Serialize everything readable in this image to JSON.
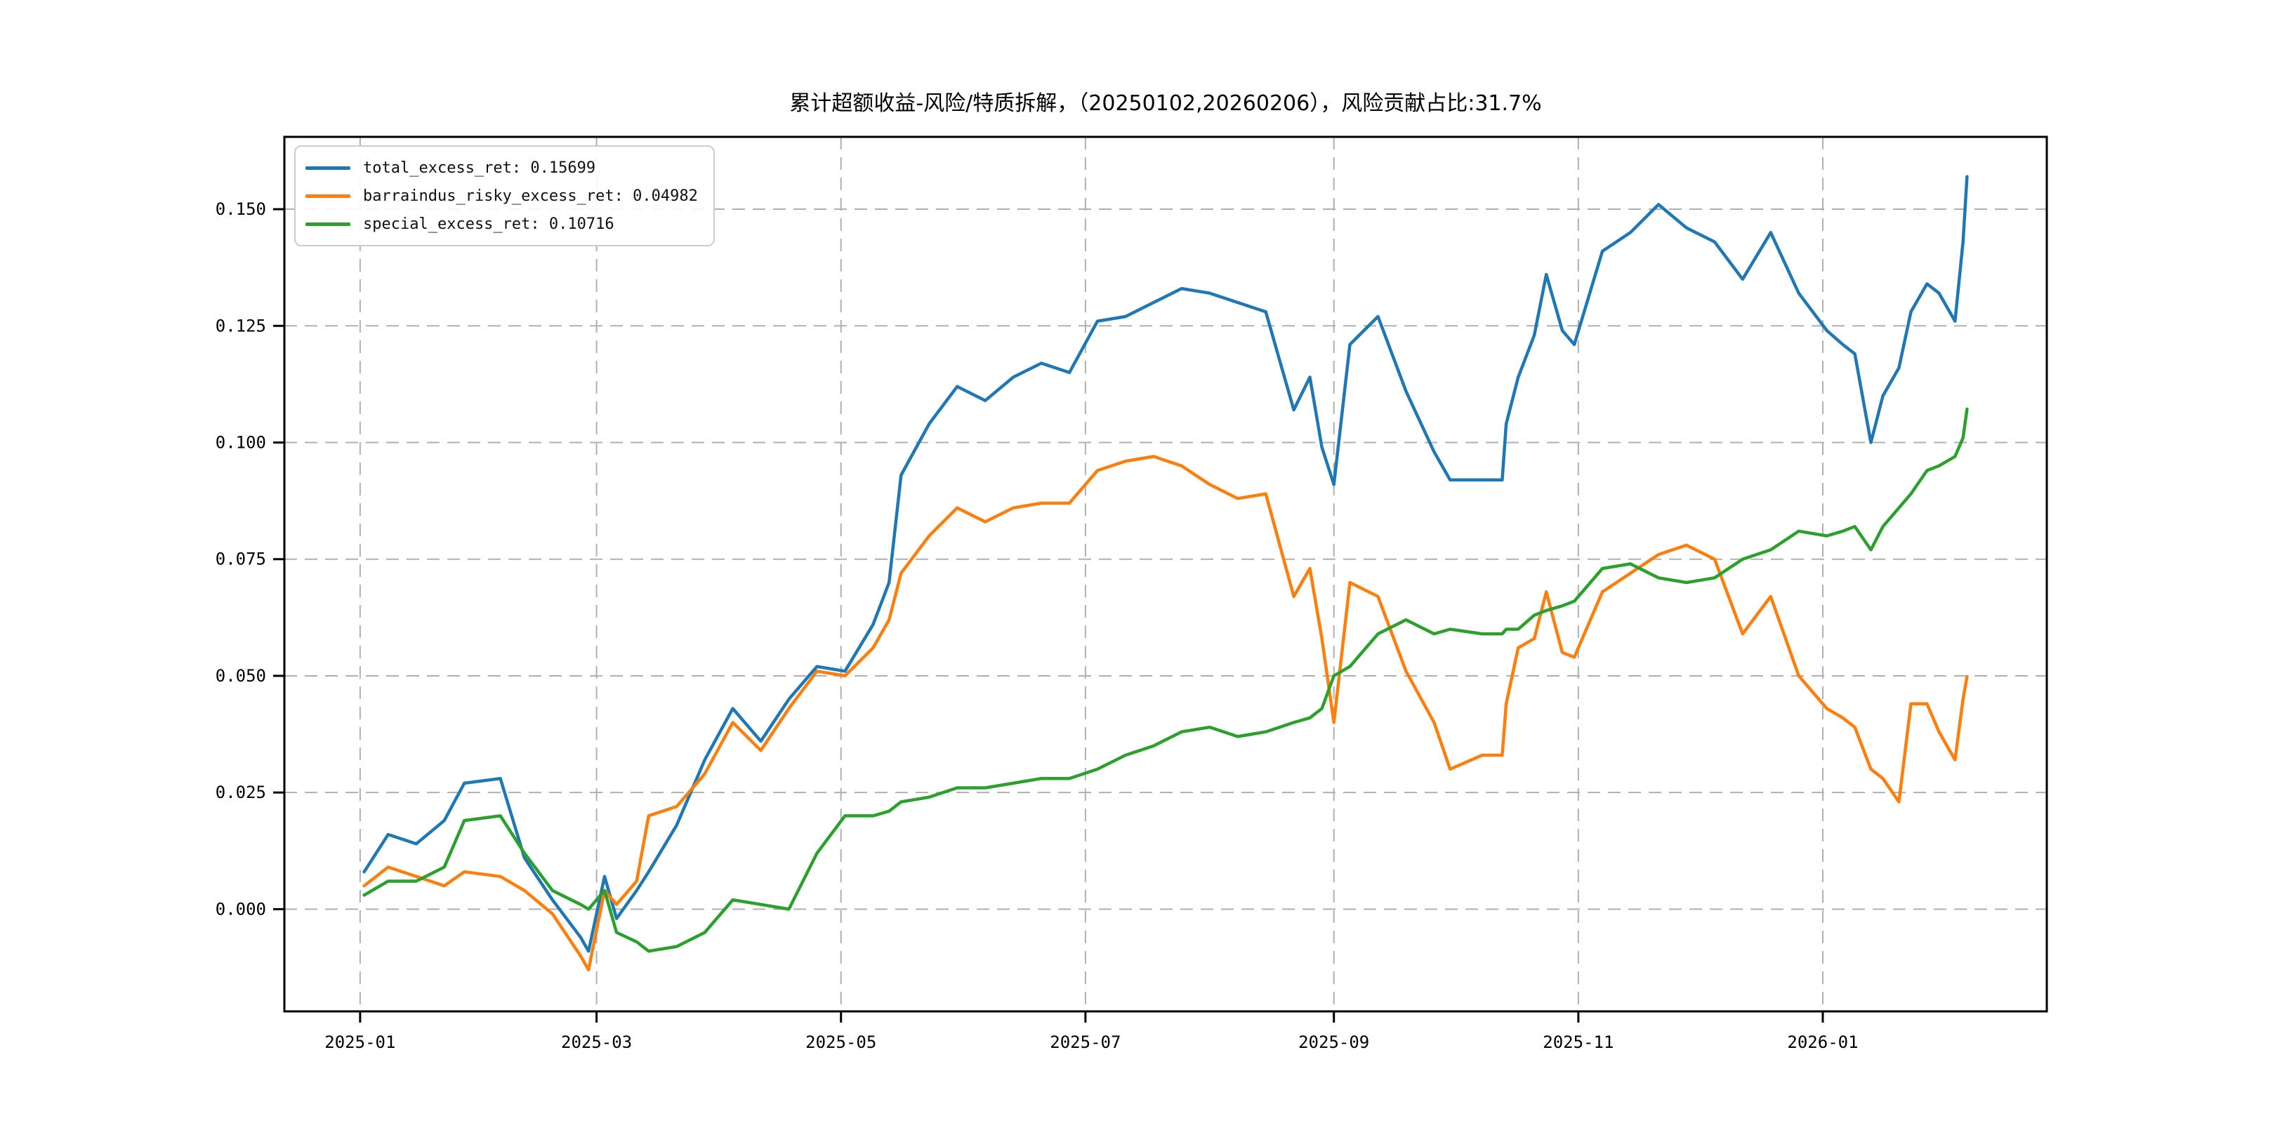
{
  "title": "累计超额收益-风险/特质拆解，（20250102,20260206），风险贡献占比:31.7%",
  "chart_data": {
    "type": "line",
    "title": "累计超额收益-风险/特质拆解，（20250102,20260206），风险贡献占比:31.7%",
    "xlabel": "",
    "ylabel": "",
    "grid": "dashed",
    "legend_position": "upper left",
    "x_dates": [
      "2025-01-02",
      "2025-01-08",
      "2025-01-15",
      "2025-01-22",
      "2025-01-27",
      "2025-02-05",
      "2025-02-11",
      "2025-02-18",
      "2025-02-25",
      "2025-02-27",
      "2025-03-03",
      "2025-03-06",
      "2025-03-11",
      "2025-03-14",
      "2025-03-21",
      "2025-03-28",
      "2025-04-04",
      "2025-04-11",
      "2025-04-18",
      "2025-04-25",
      "2025-05-02",
      "2025-05-09",
      "2025-05-13",
      "2025-05-16",
      "2025-05-23",
      "2025-05-30",
      "2025-06-06",
      "2025-06-13",
      "2025-06-20",
      "2025-06-27",
      "2025-07-04",
      "2025-07-11",
      "2025-07-18",
      "2025-07-25",
      "2025-08-01",
      "2025-08-08",
      "2025-08-15",
      "2025-08-22",
      "2025-08-26",
      "2025-08-29",
      "2025-09-01",
      "2025-09-05",
      "2025-09-12",
      "2025-09-19",
      "2025-09-26",
      "2025-09-30",
      "2025-10-08",
      "2025-10-13",
      "2025-10-14",
      "2025-10-17",
      "2025-10-21",
      "2025-10-24",
      "2025-10-28",
      "2025-10-31",
      "2025-11-07",
      "2025-11-14",
      "2025-11-21",
      "2025-11-28",
      "2025-12-05",
      "2025-12-12",
      "2025-12-19",
      "2025-12-26",
      "2026-01-02",
      "2026-01-06",
      "2026-01-09",
      "2026-01-13",
      "2026-01-16",
      "2026-01-20",
      "2026-01-23",
      "2026-01-27",
      "2026-01-30",
      "2026-02-03",
      "2026-02-05",
      "2026-02-06"
    ],
    "series": [
      {
        "name": "total_excess_ret",
        "legend_label": "total_excess_ret: 0.15699",
        "final_value": 0.15699,
        "color": "#1f77b4",
        "values": [
          0.008,
          0.016,
          0.014,
          0.019,
          0.027,
          0.028,
          0.011,
          0.002,
          -0.006,
          -0.009,
          0.007,
          -0.002,
          0.004,
          0.008,
          0.018,
          0.032,
          0.043,
          0.036,
          0.045,
          0.052,
          0.051,
          0.061,
          0.07,
          0.093,
          0.104,
          0.112,
          0.109,
          0.114,
          0.117,
          0.115,
          0.126,
          0.127,
          0.13,
          0.133,
          0.132,
          0.13,
          0.128,
          0.107,
          0.114,
          0.099,
          0.091,
          0.121,
          0.127,
          0.111,
          0.098,
          0.092,
          0.092,
          0.092,
          0.104,
          0.114,
          0.123,
          0.136,
          0.124,
          0.121,
          0.141,
          0.145,
          0.151,
          0.146,
          0.143,
          0.135,
          0.145,
          0.132,
          0.124,
          0.121,
          0.119,
          0.1,
          0.11,
          0.116,
          0.128,
          0.134,
          0.132,
          0.126,
          0.143,
          0.15699
        ]
      },
      {
        "name": "barraindus_risky_excess_ret",
        "legend_label": "barraindus_risky_excess_ret: 0.04982",
        "final_value": 0.04982,
        "color": "#ff7f0e",
        "values": [
          0.005,
          0.009,
          0.007,
          0.005,
          0.008,
          0.007,
          0.004,
          -0.001,
          -0.01,
          -0.013,
          0.004,
          0.001,
          0.006,
          0.02,
          0.022,
          0.029,
          0.04,
          0.034,
          0.043,
          0.051,
          0.05,
          0.056,
          0.062,
          0.072,
          0.08,
          0.086,
          0.083,
          0.086,
          0.087,
          0.087,
          0.094,
          0.096,
          0.097,
          0.095,
          0.091,
          0.088,
          0.089,
          0.067,
          0.073,
          0.058,
          0.04,
          0.07,
          0.067,
          0.051,
          0.04,
          0.03,
          0.033,
          0.033,
          0.044,
          0.056,
          0.058,
          0.068,
          0.055,
          0.054,
          0.068,
          0.072,
          0.076,
          0.078,
          0.075,
          0.059,
          0.067,
          0.05,
          0.043,
          0.041,
          0.039,
          0.03,
          0.028,
          0.023,
          0.044,
          0.044,
          0.038,
          0.032,
          0.045,
          0.04982
        ]
      },
      {
        "name": "special_excess_ret",
        "legend_label": "special_excess_ret: 0.10716",
        "final_value": 0.10716,
        "color": "#2ca02c",
        "values": [
          0.003,
          0.006,
          0.006,
          0.009,
          0.019,
          0.02,
          0.012,
          0.004,
          0.001,
          0.0,
          0.004,
          -0.005,
          -0.007,
          -0.009,
          -0.008,
          -0.005,
          0.002,
          0.001,
          0.0,
          0.012,
          0.02,
          0.02,
          0.021,
          0.023,
          0.024,
          0.026,
          0.026,
          0.027,
          0.028,
          0.028,
          0.03,
          0.033,
          0.035,
          0.038,
          0.039,
          0.037,
          0.038,
          0.04,
          0.041,
          0.043,
          0.05,
          0.052,
          0.059,
          0.062,
          0.059,
          0.06,
          0.059,
          0.059,
          0.06,
          0.06,
          0.063,
          0.064,
          0.065,
          0.066,
          0.073,
          0.074,
          0.071,
          0.07,
          0.071,
          0.075,
          0.077,
          0.081,
          0.08,
          0.081,
          0.082,
          0.077,
          0.082,
          0.086,
          0.089,
          0.094,
          0.095,
          0.097,
          0.101,
          0.10716
        ]
      }
    ],
    "xticks": [
      {
        "label": "2025-01",
        "day": 0
      },
      {
        "label": "2025-03",
        "day": 59
      },
      {
        "label": "2025-05",
        "day": 120
      },
      {
        "label": "2025-07",
        "day": 181
      },
      {
        "label": "2025-09",
        "day": 243
      },
      {
        "label": "2025-11",
        "day": 304
      },
      {
        "label": "2026-01",
        "day": 365
      }
    ],
    "yticks": [
      {
        "label": "0.000",
        "value": 0.0
      },
      {
        "label": "0.025",
        "value": 0.025
      },
      {
        "label": "0.050",
        "value": 0.05
      },
      {
        "label": "0.075",
        "value": 0.075
      },
      {
        "label": "0.100",
        "value": 0.1
      },
      {
        "label": "0.125",
        "value": 0.125
      },
      {
        "label": "0.150",
        "value": 0.15
      }
    ],
    "xlim_days": [
      -18.9,
      420.9
    ],
    "ylim": [
      -0.0219,
      0.1655
    ],
    "grid_color": "#b0b0b0",
    "axis_color": "#000000"
  }
}
